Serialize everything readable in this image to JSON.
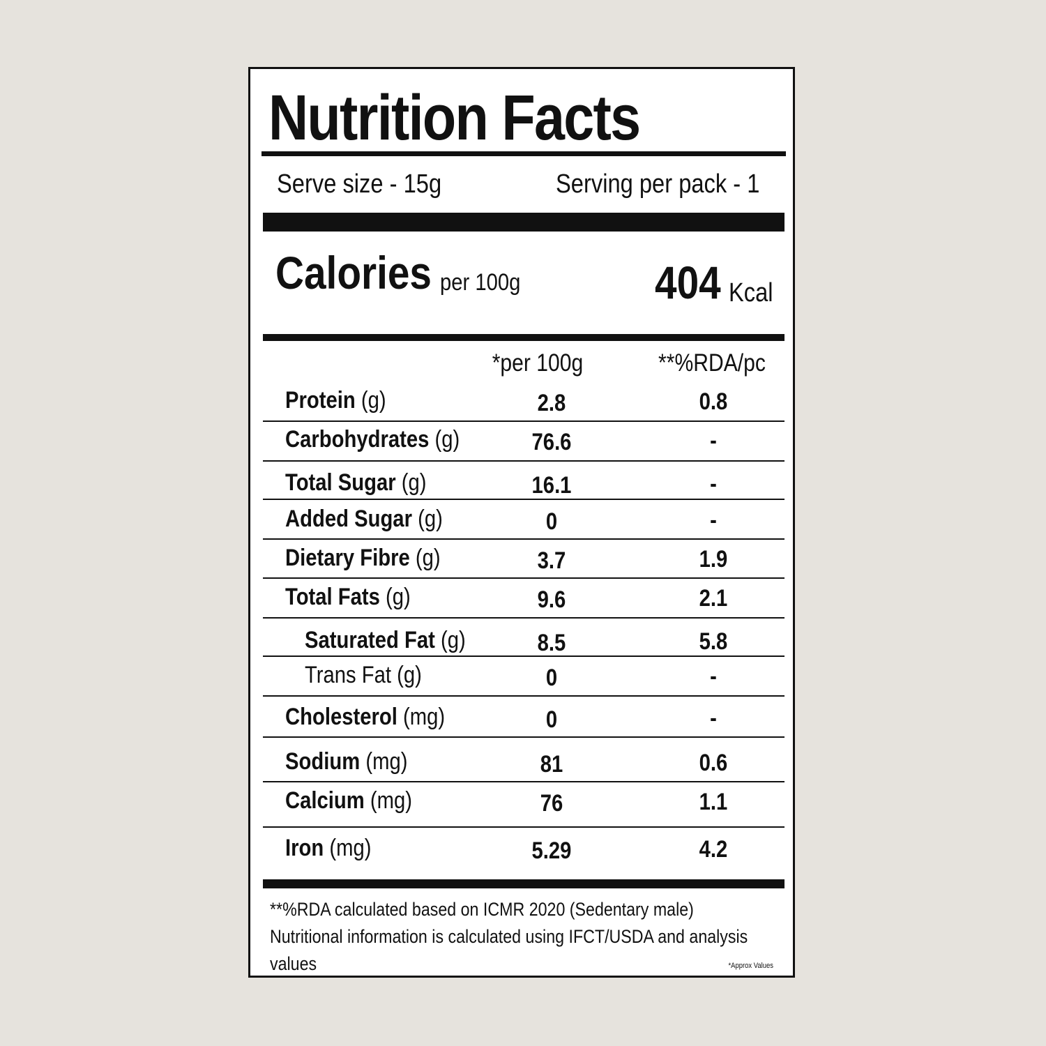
{
  "title": "Nutrition Facts",
  "serving": {
    "serve_size": "Serve size - 15g",
    "servings_per_pack": "Serving per pack - 1"
  },
  "calories": {
    "label": "Calories",
    "basis": "per 100g",
    "value": "404",
    "unit": "Kcal"
  },
  "columns": {
    "per100": "*per 100g",
    "rda": "**%RDA/pc"
  },
  "nutrients": [
    {
      "name": "Protein",
      "unit": "(g)",
      "per100": "2.8",
      "rda": "0.8"
    },
    {
      "name": "Carbohydrates",
      "unit": "(g)",
      "per100": "76.6",
      "rda": "-"
    },
    {
      "name": "Total Sugar",
      "unit": "(g)",
      "per100": "16.1",
      "rda": "-"
    },
    {
      "name": "Added Sugar",
      "unit": "(g)",
      "per100": "0",
      "rda": "-"
    },
    {
      "name": "Dietary Fibre",
      "unit": "(g)",
      "per100": "3.7",
      "rda": "1.9"
    },
    {
      "name": "Total Fats",
      "unit": "(g)",
      "per100": "9.6",
      "rda": "2.1"
    },
    {
      "name": "Saturated Fat",
      "unit": "(g)",
      "per100": "8.5",
      "rda": "5.8"
    },
    {
      "name": "Trans Fat",
      "unit": "(g)",
      "per100": "0",
      "rda": "-"
    },
    {
      "name": "Cholesterol",
      "unit": "(mg)",
      "per100": "0",
      "rda": "-"
    },
    {
      "name": "Sodium",
      "unit": "(mg)",
      "per100": "81",
      "rda": "0.6"
    },
    {
      "name": "Calcium",
      "unit": "(mg)",
      "per100": "76",
      "rda": "1.1"
    },
    {
      "name": "Iron",
      "unit": "(mg)",
      "per100": "5.29",
      "rda": "4.2"
    }
  ],
  "footnote": "**%RDA calculated based on ICMR 2020 (Sedentary male) Nutritional information is calculated using IFCT/USDA and analysis values",
  "approx_note": "*Approx Values"
}
